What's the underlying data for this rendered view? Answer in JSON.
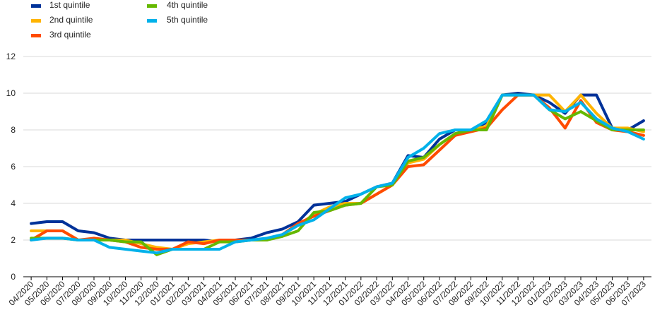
{
  "chart_data": {
    "type": "line",
    "title": "",
    "xlabel": "",
    "ylabel": "",
    "ylim": [
      0,
      12
    ],
    "yticks": [
      0,
      2,
      4,
      6,
      8,
      10,
      12
    ],
    "grid": "horizontal",
    "legend_position": "top-left",
    "categories": [
      "04/2020",
      "05/2020",
      "06/2020",
      "07/2020",
      "08/2020",
      "09/2020",
      "10/2020",
      "11/2020",
      "12/2020",
      "01/2021",
      "02/2021",
      "03/2021",
      "04/2021",
      "05/2021",
      "06/2021",
      "07/2021",
      "08/2021",
      "09/2021",
      "10/2021",
      "11/2021",
      "12/2021",
      "01/2022",
      "02/2022",
      "03/2022",
      "04/2022",
      "05/2022",
      "06/2022",
      "07/2022",
      "08/2022",
      "09/2022",
      "10/2022",
      "11/2022",
      "12/2022",
      "01/2023",
      "02/2023",
      "03/2023",
      "04/2023",
      "05/2023",
      "06/2023",
      "07/2023"
    ],
    "series": [
      {
        "name": "1st quintile",
        "color": "#003299",
        "values": [
          2.9,
          3.0,
          3.0,
          2.5,
          2.4,
          2.1,
          2.0,
          2.0,
          2.0,
          2.0,
          2.0,
          2.0,
          1.9,
          2.0,
          2.1,
          2.4,
          2.6,
          3.0,
          3.9,
          4.0,
          4.1,
          4.5,
          4.9,
          5.1,
          6.6,
          6.5,
          7.5,
          8.0,
          8.0,
          8.4,
          9.9,
          10.0,
          9.9,
          9.5,
          8.9,
          9.9,
          9.9,
          8.1,
          8.0,
          8.5
        ]
      },
      {
        "name": "2nd quintile",
        "color": "#FFB400",
        "values": [
          2.5,
          2.5,
          2.5,
          2.0,
          2.0,
          2.0,
          2.0,
          1.8,
          1.6,
          1.5,
          1.8,
          1.9,
          2.0,
          2.0,
          2.0,
          2.0,
          2.3,
          2.8,
          3.4,
          3.8,
          4.0,
          4.0,
          4.5,
          5.0,
          6.2,
          6.4,
          7.2,
          7.8,
          8.0,
          8.2,
          9.9,
          9.9,
          9.9,
          9.9,
          9.0,
          9.9,
          8.9,
          8.1,
          8.1,
          7.9
        ]
      },
      {
        "name": "3rd quintile",
        "color": "#FF4B00",
        "values": [
          2.0,
          2.5,
          2.5,
          2.0,
          2.1,
          2.0,
          1.9,
          1.6,
          1.5,
          1.5,
          1.9,
          1.8,
          2.0,
          2.0,
          2.0,
          2.0,
          2.3,
          2.9,
          3.3,
          3.6,
          3.9,
          4.0,
          4.5,
          5.0,
          6.0,
          6.1,
          6.9,
          7.7,
          7.9,
          8.1,
          9.1,
          9.9,
          9.9,
          9.2,
          8.1,
          9.6,
          8.4,
          8.0,
          7.9,
          7.7
        ]
      },
      {
        "name": "4th quintile",
        "color": "#65B800",
        "values": [
          2.1,
          2.1,
          2.1,
          2.0,
          2.0,
          2.0,
          1.9,
          1.9,
          1.2,
          1.5,
          1.5,
          1.5,
          1.9,
          1.9,
          2.0,
          2.0,
          2.2,
          2.5,
          3.5,
          3.6,
          3.9,
          4.0,
          4.9,
          5.0,
          6.3,
          6.5,
          7.2,
          7.8,
          8.0,
          8.0,
          9.9,
          9.9,
          9.9,
          9.1,
          8.6,
          9.0,
          8.5,
          8.0,
          8.0,
          8.0
        ]
      },
      {
        "name": "5th quintile",
        "color": "#00B1EA",
        "values": [
          2.0,
          2.1,
          2.1,
          2.0,
          2.0,
          1.6,
          1.5,
          1.4,
          1.3,
          1.5,
          1.5,
          1.5,
          1.5,
          1.9,
          2.0,
          2.1,
          2.3,
          2.8,
          3.1,
          3.7,
          4.3,
          4.5,
          4.9,
          5.1,
          6.5,
          7.0,
          7.8,
          8.0,
          8.0,
          8.5,
          9.9,
          9.9,
          9.9,
          9.1,
          9.0,
          9.5,
          8.6,
          8.1,
          7.9,
          7.5
        ]
      }
    ]
  }
}
